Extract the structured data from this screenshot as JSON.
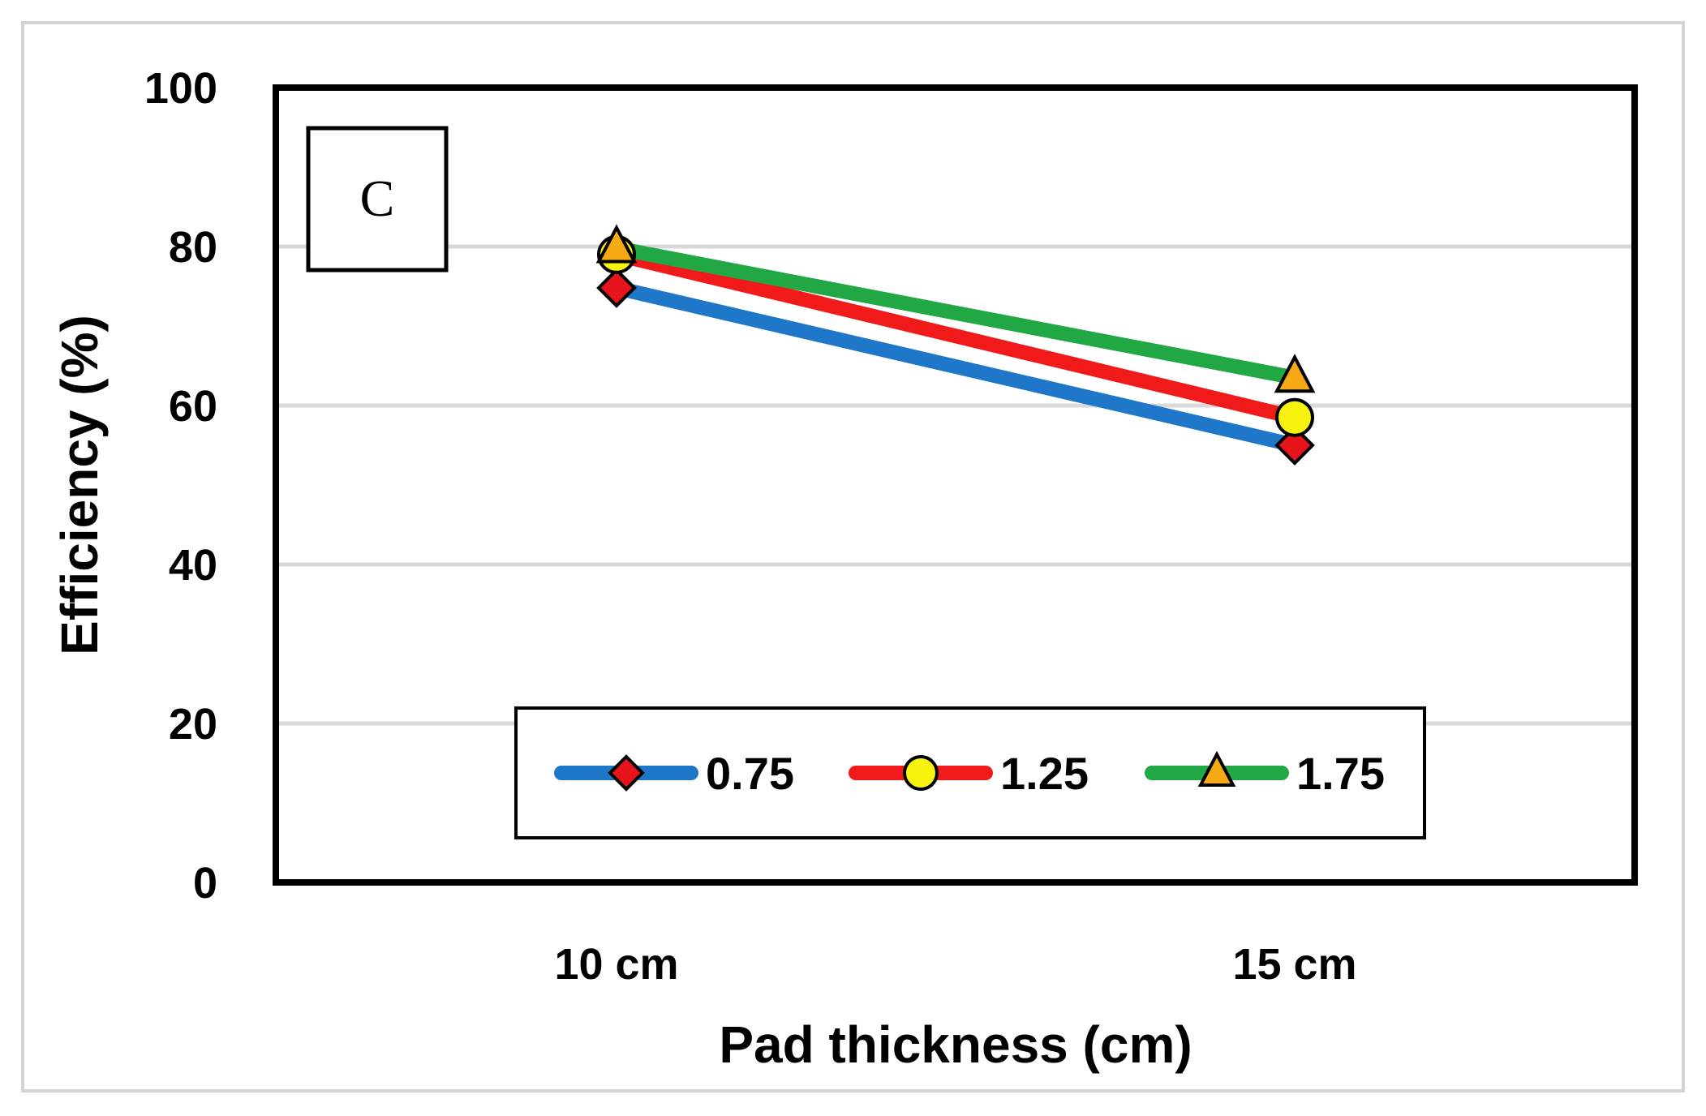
{
  "chart_data": {
    "type": "line",
    "title": "",
    "xlabel": "Pad thickness (cm)",
    "ylabel": "Efficiency (%)",
    "categories": [
      "10 cm",
      "15 cm"
    ],
    "ylim": [
      0,
      100
    ],
    "yticks": [
      0,
      20,
      40,
      60,
      80,
      100
    ],
    "grid": true,
    "legend_position": "bottom-center",
    "panel_label": "C",
    "series": [
      {
        "name": "0.75",
        "values": [
          74.8,
          55.0
        ],
        "line_color": "#1f77c9",
        "marker": "diamond",
        "marker_color": "#e8141c"
      },
      {
        "name": "1.25",
        "values": [
          79.0,
          58.5
        ],
        "line_color": "#f01a1a",
        "marker": "circle",
        "marker_color": "#f7f30f"
      },
      {
        "name": "1.75",
        "values": [
          79.8,
          63.5
        ],
        "line_color": "#21a845",
        "marker": "triangle",
        "marker_color": "#f4a915"
      }
    ]
  }
}
